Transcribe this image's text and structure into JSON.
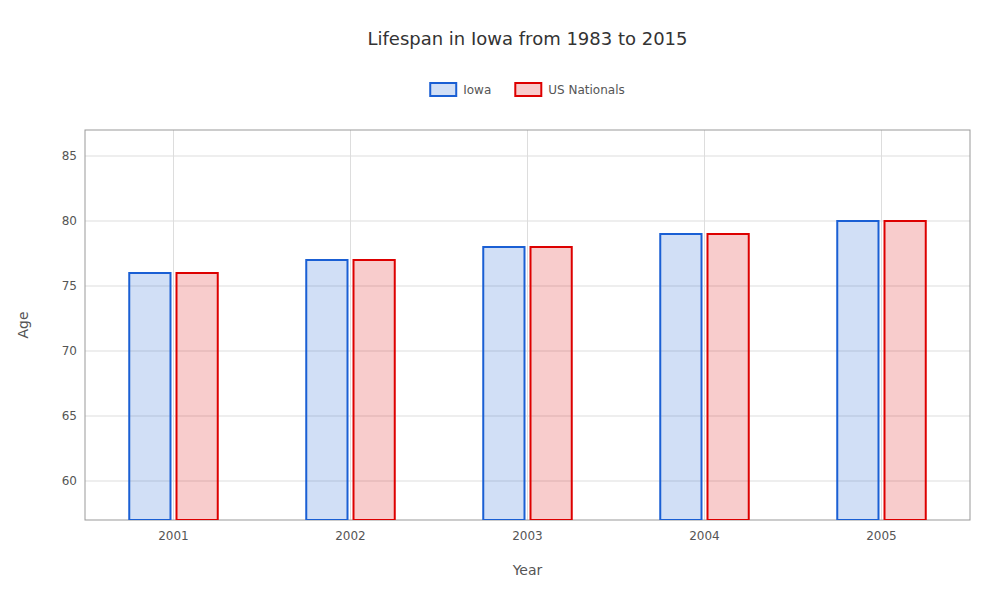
{
  "chart_data": {
    "type": "bar",
    "title": "Lifespan in Iowa from 1983 to 2015",
    "x_label": "Year",
    "y_label": "Age",
    "categories": [
      "2001",
      "2002",
      "2003",
      "2004",
      "2005"
    ],
    "series": [
      {
        "name": "Iowa",
        "color": "#1a5fd4",
        "values": [
          76,
          77,
          78,
          79,
          80
        ]
      },
      {
        "name": "US Nationals",
        "color": "#dd0000",
        "values": [
          76,
          77,
          78,
          79,
          80
        ]
      }
    ],
    "ylim": [
      57,
      87
    ],
    "yticks": [
      60,
      65,
      70,
      75,
      80,
      85
    ],
    "grid": true,
    "legend": "top"
  }
}
